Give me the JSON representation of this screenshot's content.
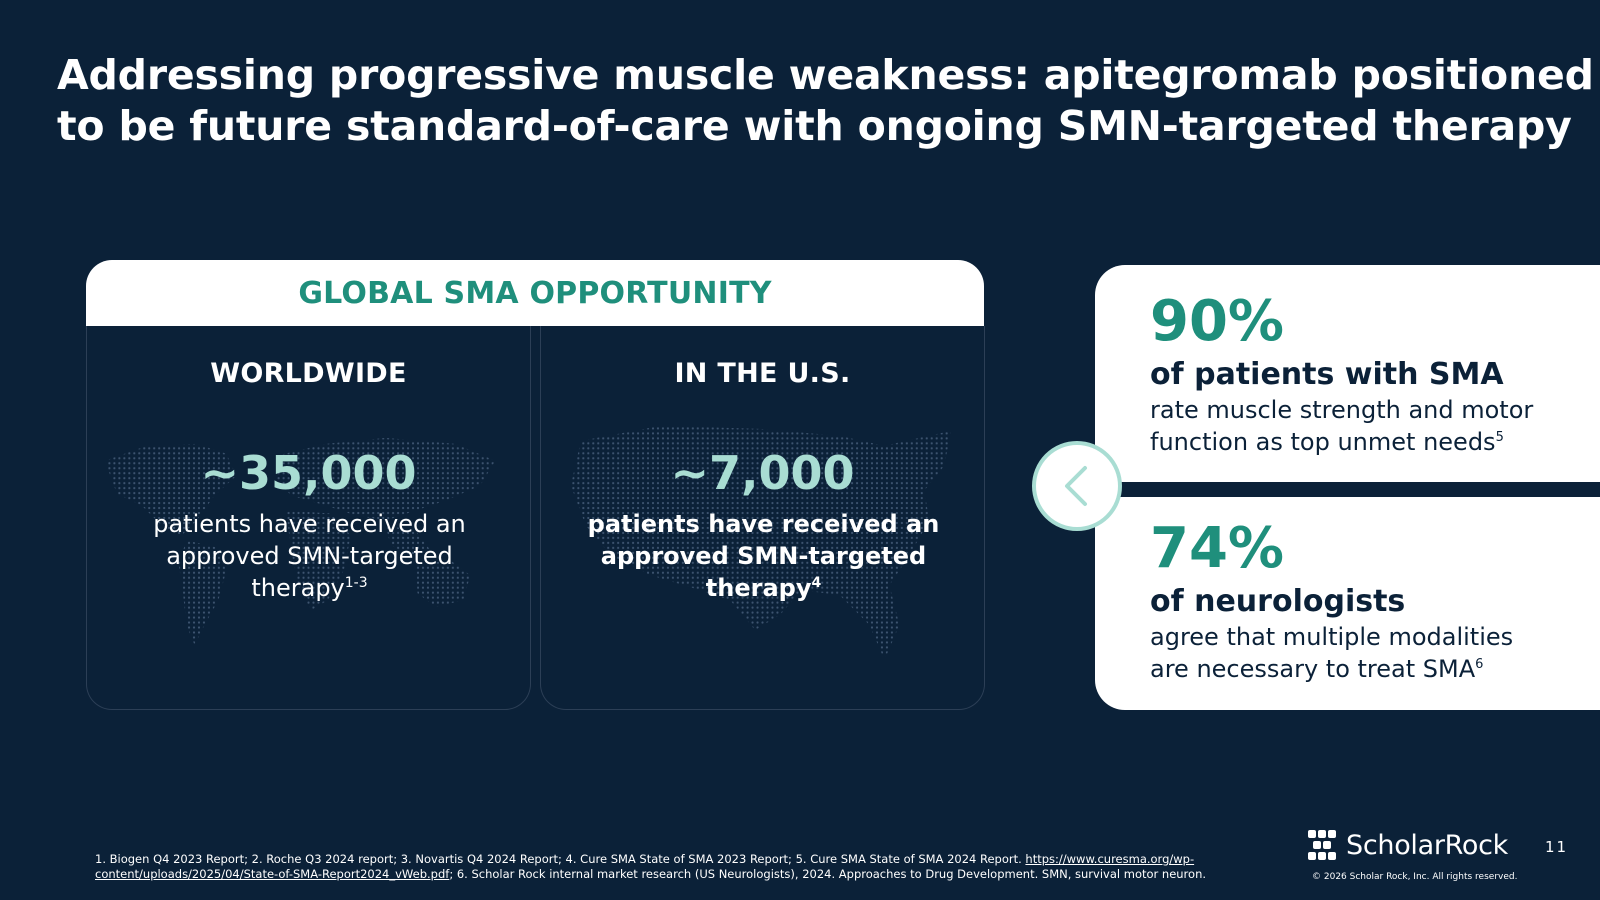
{
  "title": {
    "line1": "Addressing progressive muscle weakness: apitegromab positioned",
    "line2": "to be future standard-of-care with ongoing SMN-targeted therapy"
  },
  "opportunity": {
    "header": "GLOBAL SMA OPPORTUNITY",
    "worldwide": {
      "label": "WORLDWIDE",
      "stat": "~35,000",
      "desc_line1": "patients have received an",
      "desc_line2": "approved SMN-targeted",
      "desc_line3": "therapy",
      "ref": "1-3"
    },
    "us": {
      "label": "IN THE U.S.",
      "stat": "~7,000",
      "desc_line1": "patients have received an",
      "desc_line2": "approved SMN-targeted",
      "desc_line3": "therapy",
      "ref": "4"
    }
  },
  "stats": [
    {
      "value": "90%",
      "heading": "of patients with SMA",
      "text_line1": "rate muscle strength and motor",
      "text_line2": "function as top unmet needs",
      "ref": "5"
    },
    {
      "value": "74%",
      "heading": "of neurologists",
      "text_line1": "agree that multiple modalities",
      "text_line2": "are necessary to treat SMA",
      "ref": "6"
    }
  ],
  "chevron_icon": "chevron-left-icon",
  "footnotes": {
    "part1": "1. Biogen Q4 2023 Report; 2. Roche Q3 2024 report; 3. Novartis Q4 2024 Report; 4. Cure SMA State of SMA 2023 Report; 5. Cure SMA State of SMA 2024 Report. ",
    "link": "https://www.curesma.org/wp-content/uploads/2025/04/State-of-SMA-Report2024_vWeb.pdf",
    "part2": "; 6. Scholar Rock internal market research (US Neurologists), 2024. Approaches to Drug Development. SMN, survival motor neuron."
  },
  "brand": {
    "name_part1": "Scholar",
    "name_part2": "Rock",
    "copyright": "© 2026 Scholar Rock, Inc. All rights reserved."
  },
  "page_number": "11",
  "colors": {
    "background": "#0b2138",
    "accent_teal": "#1f8f7c",
    "light_teal": "#a9ddd3",
    "white": "#ffffff"
  }
}
